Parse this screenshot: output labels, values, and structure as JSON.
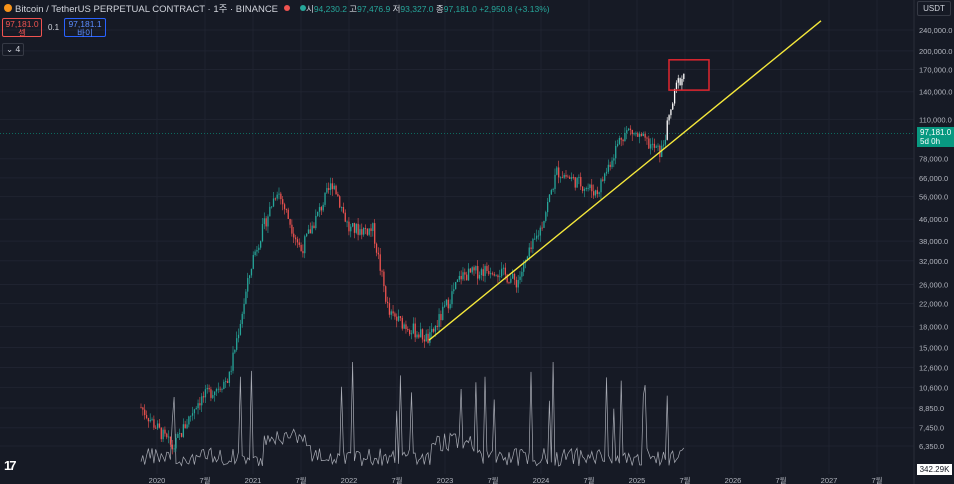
{
  "header": {
    "title": "Bitcoin / TetherUS PERPETUAL CONTRACT · 1주 · BINANCE",
    "open_label": "시",
    "open": "94,230.2",
    "high_label": "고",
    "high": "97,476.9",
    "low_label": "저",
    "low": "93,327.0",
    "close_label": "종",
    "close": "97,181.0",
    "change": "+2,950.8 (+3.13%)"
  },
  "trade": {
    "sell_price": "97,181.0",
    "sell_label": "셀",
    "spread": "0.1",
    "buy_price": "97,181.1",
    "buy_label": "바이"
  },
  "indicator_toggle": "4",
  "currency": "USDT",
  "price_tag": {
    "price": "97,181.0",
    "countdown": "5d 0h"
  },
  "volume_tag": "342.29K",
  "logo": "17",
  "colors": {
    "up": "#26a69a",
    "down": "#ef5350",
    "trend": "#f5e83b",
    "box": "#e0262f",
    "accent": "#089981"
  },
  "chart_data": {
    "type": "candlestick",
    "y_scale": "log",
    "y_ticks": [
      "240,000.0",
      "200,000.0",
      "170,000.0",
      "140,000.0",
      "110,000.0",
      "78,000.0",
      "66,000.0",
      "56,000.0",
      "46,000.0",
      "38,000.0",
      "32,000.0",
      "26,000.0",
      "22,000.0",
      "18,000.0",
      "15,000.0",
      "12,600.0",
      "10,600.0",
      "8,850.0",
      "7,450.0",
      "6,350.0"
    ],
    "y_tick_values": [
      240000,
      200000,
      170000,
      140000,
      110000,
      78000,
      66000,
      56000,
      46000,
      38000,
      32000,
      26000,
      22000,
      18000,
      15000,
      12600,
      10600,
      8850,
      7450,
      6350
    ],
    "x_ticks": [
      "2020",
      "7월",
      "2021",
      "7월",
      "2022",
      "7월",
      "2023",
      "7월",
      "2024",
      "7월",
      "2025",
      "7월",
      "2026",
      "7월",
      "2027",
      "7월"
    ],
    "anchors": [
      [
        "2019-11",
        8900
      ],
      [
        "2020-03",
        6200
      ],
      [
        "2020-06",
        9300
      ],
      [
        "2020-10",
        11500
      ],
      [
        "2021-01",
        33000
      ],
      [
        "2021-04",
        60000
      ],
      [
        "2021-07",
        35000
      ],
      [
        "2021-11",
        64000
      ],
      [
        "2022-01",
        42000
      ],
      [
        "2022-04",
        42000
      ],
      [
        "2022-06",
        20000
      ],
      [
        "2022-11",
        16000
      ],
      [
        "2023-03",
        28000
      ],
      [
        "2023-07",
        30000
      ],
      [
        "2023-10",
        26500
      ],
      [
        "2024-01",
        43000
      ],
      [
        "2024-03",
        70000
      ],
      [
        "2024-08",
        58000
      ],
      [
        "2024-11",
        95000
      ],
      [
        "2024-12",
        100000
      ],
      [
        "2025-04",
        82000
      ],
      [
        "2025-05",
        110000
      ],
      [
        "2025-06",
        150000
      ],
      [
        "2025-07",
        165000
      ]
    ],
    "trendline": {
      "start": [
        "2022-11",
        16000
      ],
      "end": [
        "2026-12",
        260000
      ]
    },
    "highlight_box": {
      "x_range": [
        "2025-05",
        "2025-10"
      ],
      "y_range": [
        142000,
        185000
      ]
    },
    "last_price": 97181.0
  }
}
